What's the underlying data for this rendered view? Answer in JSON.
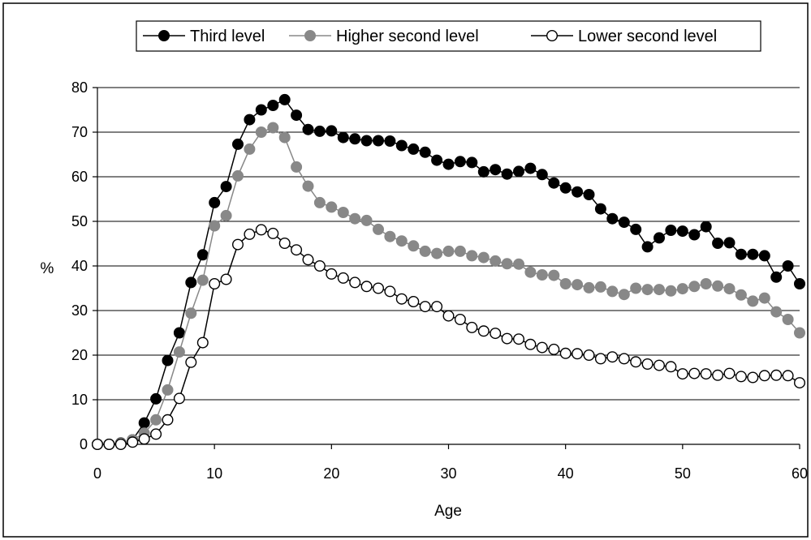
{
  "chart_data": {
    "type": "line",
    "title": "",
    "xlabel": "Age",
    "ylabel": "%",
    "xlim": [
      0,
      60
    ],
    "ylim": [
      0,
      80
    ],
    "xticks": [
      0,
      10,
      20,
      30,
      40,
      50,
      60
    ],
    "yticks": [
      0,
      10,
      20,
      30,
      40,
      50,
      60,
      70,
      80
    ],
    "grid": "horizontal",
    "legend_position": "top",
    "series": [
      {
        "name": "Third level",
        "color": "#000000",
        "marker_fill": "#000000",
        "x": [
          0,
          1,
          2,
          3,
          4,
          5,
          6,
          7,
          8,
          9,
          10,
          11,
          12,
          13,
          14,
          15,
          16,
          17,
          18,
          19,
          20,
          21,
          22,
          23,
          24,
          25,
          26,
          27,
          28,
          29,
          30,
          31,
          32,
          33,
          34,
          35,
          36,
          37,
          38,
          39,
          40,
          41,
          42,
          43,
          44,
          45,
          46,
          47,
          48,
          49,
          50,
          51,
          52,
          53,
          54,
          55,
          56,
          57,
          58,
          59,
          60
        ],
        "values": [
          0,
          0,
          0.3,
          1,
          4.8,
          10.2,
          18.8,
          25,
          36.3,
          42.5,
          54.2,
          57.8,
          67.3,
          72.8,
          75,
          76,
          77.3,
          73.8,
          70.6,
          70.2,
          70.3,
          68.8,
          68.5,
          68.1,
          68.1,
          68,
          67,
          66.2,
          65.5,
          63.7,
          62.8,
          63.4,
          63.2,
          61.1,
          61.6,
          60.6,
          61.2,
          61.9,
          60.5,
          58.6,
          57.5,
          56.6,
          56,
          52.8,
          50.6,
          49.8,
          48.2,
          44.3,
          46.3,
          48,
          47.8,
          47,
          48.8,
          45.1,
          45.2,
          42.6,
          42.6,
          42.3,
          37.5,
          40,
          36
        ]
      },
      {
        "name": "Higher second level",
        "color": "#888888",
        "marker_fill": "#888888",
        "x": [
          0,
          1,
          2,
          3,
          4,
          5,
          6,
          7,
          8,
          9,
          10,
          11,
          12,
          13,
          14,
          15,
          16,
          17,
          18,
          19,
          20,
          21,
          22,
          23,
          24,
          25,
          26,
          27,
          28,
          29,
          30,
          31,
          32,
          33,
          34,
          35,
          36,
          37,
          38,
          39,
          40,
          41,
          42,
          43,
          44,
          45,
          46,
          47,
          48,
          49,
          50,
          51,
          52,
          53,
          54,
          55,
          56,
          57,
          58,
          59,
          60
        ],
        "values": [
          0,
          0,
          0.2,
          1,
          2.5,
          5.5,
          12.2,
          20.7,
          29.4,
          36.8,
          49,
          51.3,
          60.2,
          66.2,
          70,
          71,
          68.8,
          62.2,
          57.9,
          54.2,
          53.2,
          52,
          50.6,
          50.2,
          48.2,
          46.6,
          45.6,
          44.5,
          43.3,
          42.8,
          43.3,
          43.3,
          42.3,
          41.9,
          41.1,
          40.5,
          40.4,
          38.6,
          38,
          37.9,
          36,
          35.8,
          35.1,
          35.3,
          34.3,
          33.6,
          35,
          34.7,
          34.7,
          34.4,
          34.9,
          35.4,
          36,
          35.5,
          34.9,
          33.5,
          32.1,
          32.8,
          29.7,
          28,
          25
        ]
      },
      {
        "name": "Lower second level",
        "color": "#000000",
        "marker_fill": "#ffffff",
        "x": [
          0,
          1,
          2,
          3,
          4,
          5,
          6,
          7,
          8,
          9,
          10,
          11,
          12,
          13,
          14,
          15,
          16,
          17,
          18,
          19,
          20,
          21,
          22,
          23,
          24,
          25,
          26,
          27,
          28,
          29,
          30,
          31,
          32,
          33,
          34,
          35,
          36,
          37,
          38,
          39,
          40,
          41,
          42,
          43,
          44,
          45,
          46,
          47,
          48,
          49,
          50,
          51,
          52,
          53,
          54,
          55,
          56,
          57,
          58,
          59,
          60
        ],
        "values": [
          0,
          0,
          0,
          0.5,
          1.2,
          2.3,
          5.5,
          10.3,
          18.4,
          22.8,
          36,
          37,
          44.8,
          47.1,
          48.1,
          47.3,
          45.1,
          43.6,
          41.4,
          40,
          38.2,
          37.3,
          36.3,
          35.4,
          35,
          34.3,
          32.6,
          32,
          30.9,
          30.9,
          28.8,
          28,
          26.2,
          25.4,
          24.9,
          23.7,
          23.6,
          22.4,
          21.7,
          21.3,
          20.4,
          20.3,
          20,
          19.2,
          19.6,
          19.2,
          18.5,
          18,
          17.7,
          17.4,
          15.8,
          15.9,
          15.8,
          15.5,
          15.9,
          15.2,
          15,
          15.4,
          15.5,
          15.4,
          13.8
        ]
      }
    ]
  }
}
